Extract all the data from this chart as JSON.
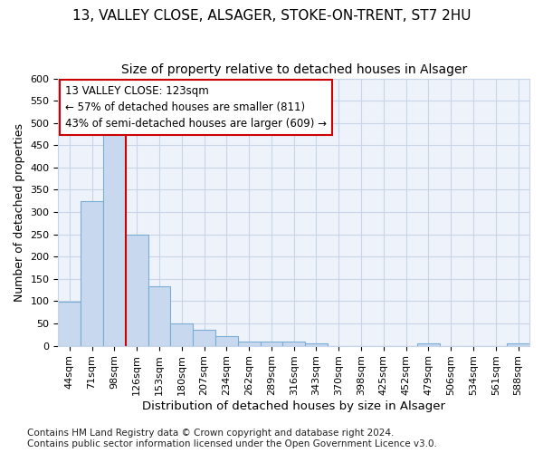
{
  "title_line1": "13, VALLEY CLOSE, ALSAGER, STOKE-ON-TRENT, ST7 2HU",
  "title_line2": "Size of property relative to detached houses in Alsager",
  "xlabel": "Distribution of detached houses by size in Alsager",
  "ylabel": "Number of detached properties",
  "bar_labels": [
    "44sqm",
    "71sqm",
    "98sqm",
    "126sqm",
    "153sqm",
    "180sqm",
    "207sqm",
    "234sqm",
    "262sqm",
    "289sqm",
    "316sqm",
    "343sqm",
    "370sqm",
    "398sqm",
    "425sqm",
    "452sqm",
    "479sqm",
    "506sqm",
    "534sqm",
    "561sqm",
    "588sqm"
  ],
  "bar_values": [
    98,
    325,
    495,
    250,
    133,
    50,
    35,
    22,
    9,
    10,
    10,
    5,
    0,
    0,
    0,
    0,
    5,
    0,
    0,
    0,
    5
  ],
  "bar_color": "#c8d9ef",
  "bar_edge_color": "#7aadd4",
  "grid_color": "#c8d4e8",
  "background_color": "#eef2fa",
  "vline_x": 3,
  "vline_color": "#cc0000",
  "annotation_line1": "13 VALLEY CLOSE: 123sqm",
  "annotation_line2": "← 57% of detached houses are smaller (811)",
  "annotation_line3": "43% of semi-detached houses are larger (609) →",
  "annotation_box_color": "#ffffff",
  "annotation_box_edge": "#cc0000",
  "annotation_fontsize": 8.5,
  "ylim": [
    0,
    600
  ],
  "yticks": [
    0,
    50,
    100,
    150,
    200,
    250,
    300,
    350,
    400,
    450,
    500,
    550,
    600
  ],
  "footer_text": "Contains HM Land Registry data © Crown copyright and database right 2024.\nContains public sector information licensed under the Open Government Licence v3.0.",
  "title_fontsize": 11,
  "subtitle_fontsize": 10,
  "xlabel_fontsize": 9.5,
  "ylabel_fontsize": 9,
  "tick_fontsize": 8,
  "footer_fontsize": 7.5
}
